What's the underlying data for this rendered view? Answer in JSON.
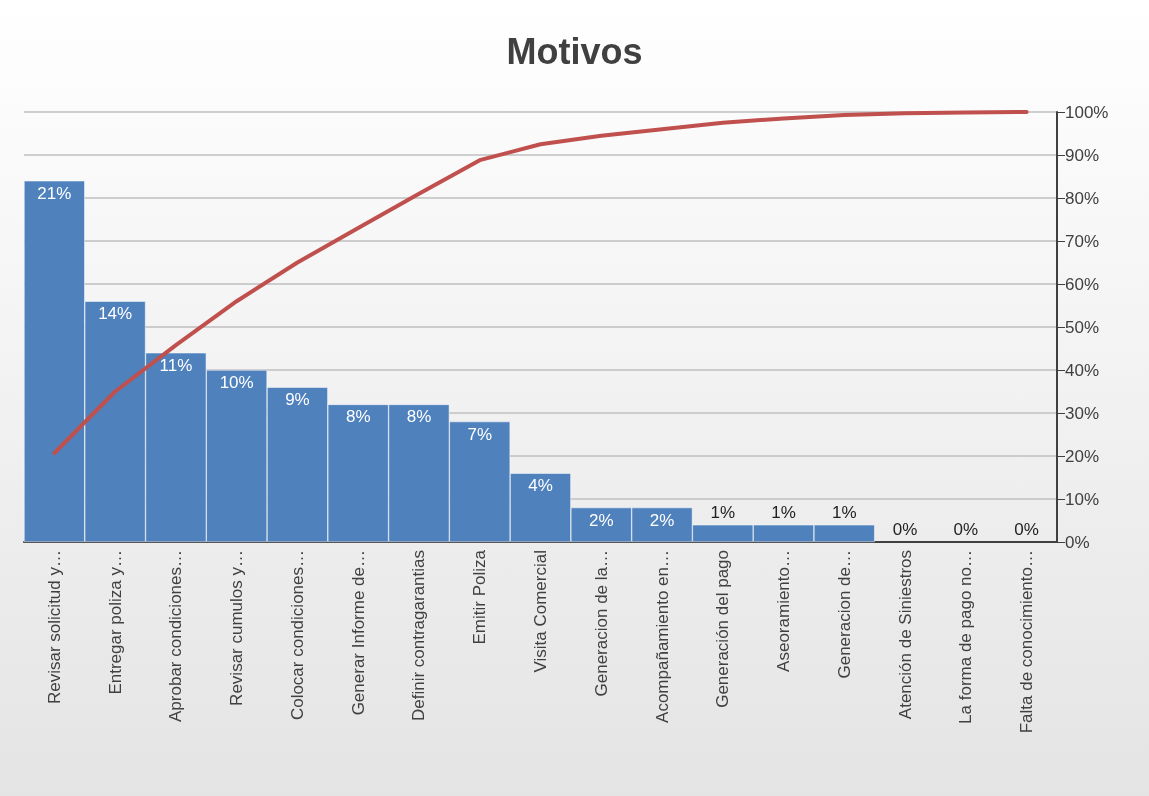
{
  "chart_data": {
    "type": "bar",
    "title": "Motivos",
    "categories": [
      "Revisar solicitud y…",
      "Entregar poliza y…",
      "Aprobar condiciones…",
      "Revisar cumulos y…",
      "Colocar condiciones…",
      "Generar Informe de…",
      "Definir contragarantias",
      "Emitir Poliza",
      "Visita Comercial",
      "Generacion de la…",
      "Acompañamiento en…",
      "Generación del pago",
      "Aseoramiento…",
      "Generacion de…",
      "Atención de Siniestros",
      "La forma de pago no…",
      "Falta de conocimiento…"
    ],
    "series": [
      {
        "color": "#4f81bd",
        "values": [
          21,
          14,
          11,
          10,
          9,
          8,
          8,
          7,
          4,
          2,
          2,
          1,
          1,
          1,
          0,
          0,
          0
        ],
        "value_labels": [
          "21%",
          "14%",
          "11%",
          "10%",
          "9%",
          "8%",
          "8%",
          "7%",
          "4%",
          "2%",
          "2%",
          "1%",
          "1%",
          "1%",
          "0%",
          "0%",
          "0%"
        ]
      },
      {
        "type": "line",
        "axis": "y2",
        "color": "#c0504d",
        "values": [
          20.7,
          35,
          45.8,
          56,
          65,
          73,
          81,
          88.8,
          92.5,
          94.5,
          96,
          97.5,
          98.5,
          99.3,
          99.7,
          99.9,
          100
        ]
      }
    ],
    "y2lim": [
      0,
      100
    ],
    "y2ticks": [
      {
        "value": 0,
        "label": "0%"
      },
      {
        "value": 10,
        "label": "10%"
      },
      {
        "value": 20,
        "label": "20%"
      },
      {
        "value": 30,
        "label": "30%"
      },
      {
        "value": 40,
        "label": "40%"
      },
      {
        "value": 50,
        "label": "50%"
      },
      {
        "value": 60,
        "label": "60%"
      },
      {
        "value": 70,
        "label": "70%"
      },
      {
        "value": 80,
        "label": "80%"
      },
      {
        "value": 90,
        "label": "90%"
      },
      {
        "value": 100,
        "label": "100%"
      }
    ],
    "grid": true,
    "marker": "none",
    "line_style": "solid"
  }
}
